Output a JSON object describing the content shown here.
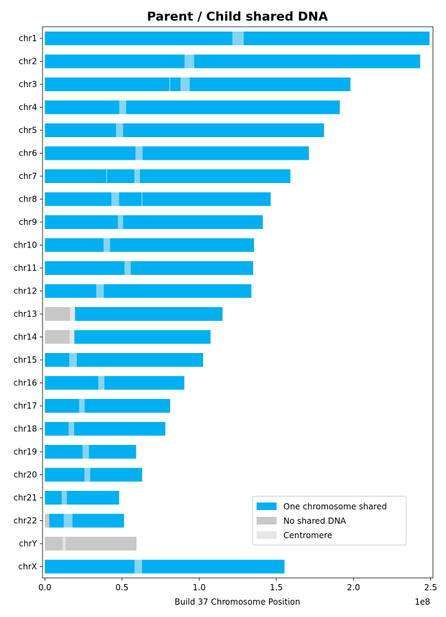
{
  "chart_data": {
    "type": "bar",
    "orientation": "horizontal-broken-bar",
    "title": "Parent / Child shared DNA",
    "xlabel": "Build 37 Chromosome Position",
    "ylabel": "",
    "x_scale_label": "1e8",
    "xlim": [
      -1500000,
      251500000
    ],
    "x_ticks": [
      0,
      50000000,
      100000000,
      150000000,
      200000000,
      250000000
    ],
    "x_tick_labels": [
      "0.0",
      "0.5",
      "1.0",
      "1.5",
      "2.0",
      "2.5"
    ],
    "legend_position": "lower-right",
    "legend": [
      {
        "key": "one",
        "label": "One chromosome shared",
        "color": "#00b0f0"
      },
      {
        "key": "none",
        "label": "No shared DNA",
        "color": "#c8c8c8"
      },
      {
        "key": "centromere",
        "label": "Centromere",
        "color": "#e6e6e6"
      }
    ],
    "centromere_overlay_color": "#86d4f5",
    "chromosomes": [
      {
        "name": "chr1",
        "length": 249250621,
        "centromere": [
          121500000,
          128900000
        ],
        "segments": [
          {
            "start": 0,
            "end": 249250621,
            "type": "one"
          }
        ]
      },
      {
        "name": "chr2",
        "length": 243199373,
        "centromere": [
          90500000,
          96800000
        ],
        "segments": [
          {
            "start": 0,
            "end": 243199373,
            "type": "one"
          }
        ]
      },
      {
        "name": "chr3",
        "length": 198022430,
        "centromere": [
          87900000,
          93900000
        ],
        "segments": [
          {
            "start": 0,
            "end": 80800000,
            "type": "one"
          },
          {
            "start": 81100000,
            "end": 198022430,
            "type": "one"
          }
        ]
      },
      {
        "name": "chr4",
        "length": 191154276,
        "centromere": [
          48200000,
          52700000
        ],
        "segments": [
          {
            "start": 0,
            "end": 191154276,
            "type": "one"
          }
        ]
      },
      {
        "name": "chr5",
        "length": 180915260,
        "centromere": [
          46100000,
          50700000
        ],
        "segments": [
          {
            "start": 0,
            "end": 180915260,
            "type": "one"
          }
        ]
      },
      {
        "name": "chr6",
        "length": 171115067,
        "centromere": [
          58700000,
          63300000
        ],
        "segments": [
          {
            "start": 0,
            "end": 171115067,
            "type": "one"
          }
        ]
      },
      {
        "name": "chr7",
        "length": 159138663,
        "centromere": [
          58000000,
          61700000
        ],
        "segments": [
          {
            "start": 0,
            "end": 39800000,
            "type": "one"
          },
          {
            "start": 40100000,
            "end": 159138663,
            "type": "one"
          }
        ]
      },
      {
        "name": "chr8",
        "length": 146364022,
        "centromere": [
          43100000,
          48100000
        ],
        "segments": [
          {
            "start": 0,
            "end": 62800000,
            "type": "one"
          },
          {
            "start": 63100000,
            "end": 146364022,
            "type": "one"
          }
        ]
      },
      {
        "name": "chr9",
        "length": 141213431,
        "centromere": [
          47300000,
          50700000
        ],
        "segments": [
          {
            "start": 0,
            "end": 141213431,
            "type": "one"
          }
        ]
      },
      {
        "name": "chr10",
        "length": 135534747,
        "centromere": [
          38000000,
          42300000
        ],
        "segments": [
          {
            "start": 0,
            "end": 135534747,
            "type": "one"
          }
        ]
      },
      {
        "name": "chr11",
        "length": 135006516,
        "centromere": [
          51600000,
          55700000
        ],
        "segments": [
          {
            "start": 0,
            "end": 135006516,
            "type": "one"
          }
        ]
      },
      {
        "name": "chr12",
        "length": 133851895,
        "centromere": [
          33300000,
          38200000
        ],
        "segments": [
          {
            "start": 0,
            "end": 133851895,
            "type": "one"
          }
        ]
      },
      {
        "name": "chr13",
        "length": 115169878,
        "centromere": [
          16300000,
          19500000
        ],
        "segments": [
          {
            "start": 0,
            "end": 19500000,
            "type": "none"
          },
          {
            "start": 19500000,
            "end": 115169878,
            "type": "one"
          }
        ]
      },
      {
        "name": "chr14",
        "length": 107349540,
        "centromere": [
          16100000,
          19100000
        ],
        "segments": [
          {
            "start": 0,
            "end": 19100000,
            "type": "none"
          },
          {
            "start": 19100000,
            "end": 107349540,
            "type": "one"
          }
        ]
      },
      {
        "name": "chr15",
        "length": 102531392,
        "centromere": [
          15800000,
          20700000
        ],
        "segments": [
          {
            "start": 0,
            "end": 102531392,
            "type": "one"
          }
        ]
      },
      {
        "name": "chr16",
        "length": 90354753,
        "centromere": [
          34600000,
          38600000
        ],
        "segments": [
          {
            "start": 0,
            "end": 90354753,
            "type": "one"
          }
        ]
      },
      {
        "name": "chr17",
        "length": 81195210,
        "centromere": [
          22200000,
          25800000
        ],
        "segments": [
          {
            "start": 0,
            "end": 81195210,
            "type": "one"
          }
        ]
      },
      {
        "name": "chr18",
        "length": 78077248,
        "centromere": [
          15400000,
          19000000
        ],
        "segments": [
          {
            "start": 0,
            "end": 78077248,
            "type": "one"
          }
        ]
      },
      {
        "name": "chr19",
        "length": 59128983,
        "centromere": [
          24400000,
          28600000
        ],
        "segments": [
          {
            "start": 0,
            "end": 59128983,
            "type": "one"
          }
        ]
      },
      {
        "name": "chr20",
        "length": 63025520,
        "centromere": [
          25600000,
          29400000
        ],
        "segments": [
          {
            "start": 0,
            "end": 63025520,
            "type": "one"
          }
        ]
      },
      {
        "name": "chr21",
        "length": 48129895,
        "centromere": [
          10900000,
          14300000
        ],
        "segments": [
          {
            "start": 0,
            "end": 48129895,
            "type": "one"
          }
        ]
      },
      {
        "name": "chr22",
        "length": 51304566,
        "centromere": [
          12200000,
          17900000
        ],
        "segments": [
          {
            "start": 0,
            "end": 2800000,
            "type": "none"
          },
          {
            "start": 2800000,
            "end": 51304566,
            "type": "one"
          }
        ]
      },
      {
        "name": "chrY",
        "length": 59373566,
        "centromere": [
          11600000,
          13400000
        ],
        "segments": [
          {
            "start": 0,
            "end": 59373566,
            "type": "none"
          }
        ]
      },
      {
        "name": "chrX",
        "length": 155270560,
        "centromere": [
          58100000,
          63000000
        ],
        "segments": [
          {
            "start": 0,
            "end": 155270560,
            "type": "one"
          }
        ]
      }
    ]
  }
}
